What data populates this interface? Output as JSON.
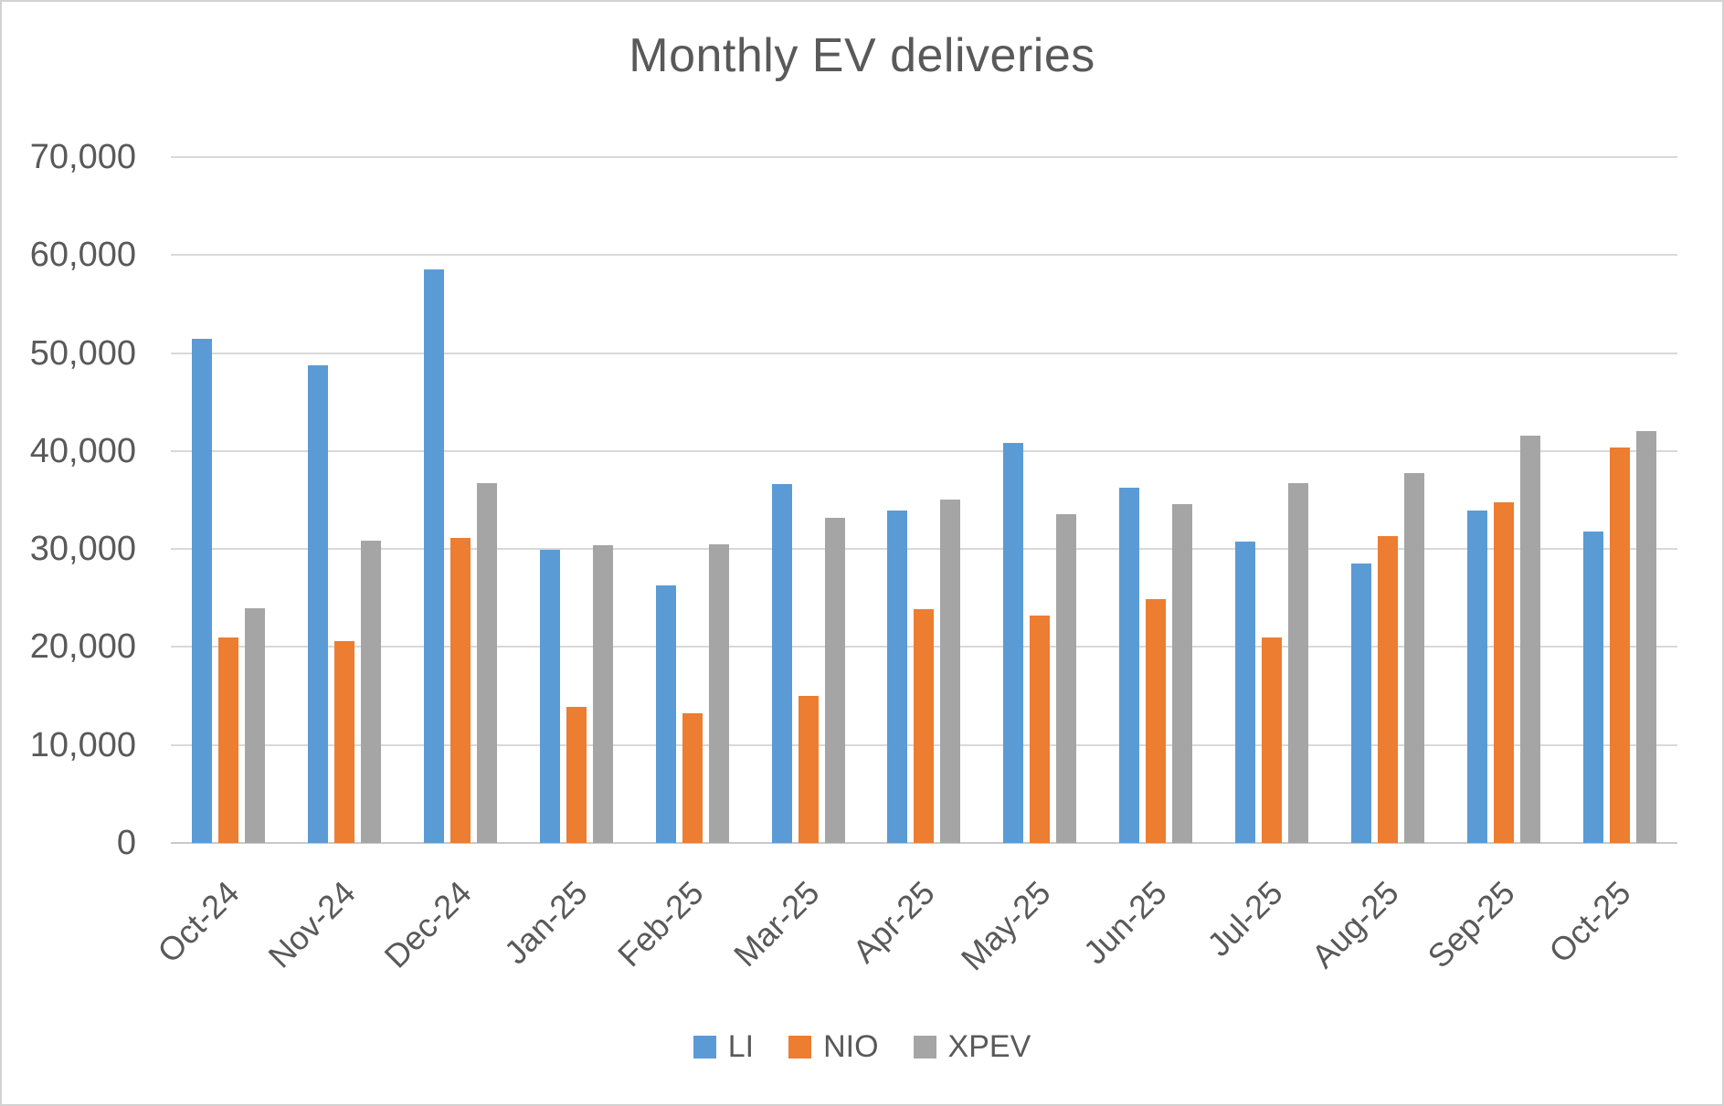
{
  "chart_data": {
    "type": "bar",
    "title": "Monthly EV deliveries",
    "categories": [
      "Oct-24",
      "Nov-24",
      "Dec-24",
      "Jan-25",
      "Feb-25",
      "Mar-25",
      "Apr-25",
      "May-25",
      "Jun-25",
      "Jul-25",
      "Aug-25",
      "Sep-25",
      "Oct-25"
    ],
    "series": [
      {
        "name": "LI",
        "color": "#5B9BD5",
        "values": [
          51443,
          48740,
          58513,
          29927,
          26263,
          36674,
          33939,
          40856,
          36279,
          30731,
          28529,
          33951,
          31767
        ]
      },
      {
        "name": "NIO",
        "color": "#ED7D31",
        "values": [
          20976,
          20575,
          31138,
          13863,
          13192,
          15039,
          23900,
          23231,
          24925,
          21017,
          31305,
          34749,
          40397
        ]
      },
      {
        "name": "XPEV",
        "color": "#A5A5A5",
        "values": [
          23917,
          30895,
          36695,
          30350,
          30453,
          33205,
          35045,
          33525,
          34611,
          36717,
          37709,
          41581,
          42013
        ]
      }
    ],
    "ylim": [
      0,
      70000
    ],
    "y_ticks": [
      {
        "value": 0,
        "label": "0"
      },
      {
        "value": 10000,
        "label": "10,000"
      },
      {
        "value": 20000,
        "label": "20,000"
      },
      {
        "value": 30000,
        "label": "30,000"
      },
      {
        "value": 40000,
        "label": "40,000"
      },
      {
        "value": 50000,
        "label": "50,000"
      },
      {
        "value": 60000,
        "label": "60,000"
      },
      {
        "value": 70000,
        "label": "70,000"
      }
    ],
    "grid": "horizontal",
    "legend_position": "bottom"
  },
  "colors": {
    "text": "#595959",
    "gridline": "#D9D9D9",
    "axis_line": "#C9C9C9",
    "background": "#FFFFFF",
    "frame_border": "#D2D2D2"
  }
}
